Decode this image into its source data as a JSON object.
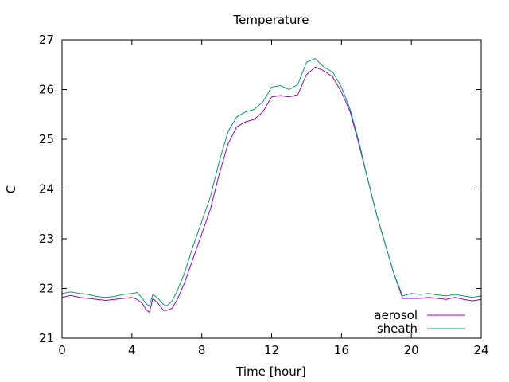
{
  "chart_data": {
    "type": "line",
    "title": "Temperature",
    "xlabel": "Time [hour]",
    "ylabel": "C",
    "xlim": [
      0,
      24
    ],
    "ylim": [
      21,
      27
    ],
    "xticks": [
      0,
      4,
      8,
      12,
      16,
      20,
      24
    ],
    "yticks": [
      21,
      22,
      23,
      24,
      25,
      26,
      27
    ],
    "grid": false,
    "legend_position": "bottom-right",
    "series": [
      {
        "name": "aerosol",
        "color": "#9400d3",
        "x": [
          0,
          0.5,
          1,
          1.5,
          2,
          2.5,
          3,
          3.5,
          4,
          4.3,
          4.6,
          4.8,
          5.0,
          5.2,
          5.5,
          5.8,
          6.0,
          6.3,
          6.6,
          7.0,
          7.5,
          8.0,
          8.5,
          9.0,
          9.5,
          10.0,
          10.5,
          11.0,
          11.5,
          12.0,
          12.5,
          13.0,
          13.5,
          14.0,
          14.5,
          15.0,
          15.5,
          16.0,
          16.5,
          17.0,
          17.5,
          18.0,
          18.5,
          19.0,
          19.5,
          20.0,
          20.5,
          21.0,
          21.5,
          22.0,
          22.5,
          23.0,
          23.5,
          24.0
        ],
        "y": [
          21.82,
          21.86,
          21.82,
          21.8,
          21.78,
          21.76,
          21.78,
          21.8,
          21.82,
          21.78,
          21.7,
          21.58,
          21.52,
          21.8,
          21.7,
          21.56,
          21.56,
          21.6,
          21.78,
          22.1,
          22.6,
          23.1,
          23.6,
          24.3,
          24.9,
          25.25,
          25.35,
          25.4,
          25.55,
          25.85,
          25.88,
          25.85,
          25.9,
          26.3,
          26.45,
          26.38,
          26.25,
          25.95,
          25.55,
          24.9,
          24.2,
          23.5,
          22.9,
          22.3,
          21.8,
          21.8,
          21.8,
          21.82,
          21.8,
          21.78,
          21.82,
          21.78,
          21.75,
          21.78
        ]
      },
      {
        "name": "sheath",
        "color": "#009e73",
        "x": [
          0,
          0.5,
          1,
          1.5,
          2,
          2.5,
          3,
          3.5,
          4,
          4.3,
          4.6,
          4.8,
          5.0,
          5.2,
          5.5,
          5.8,
          6.0,
          6.3,
          6.6,
          7.0,
          7.5,
          8.0,
          8.5,
          9.0,
          9.5,
          10.0,
          10.5,
          11.0,
          11.5,
          12.0,
          12.5,
          13.0,
          13.5,
          14.0,
          14.5,
          15.0,
          15.5,
          16.0,
          16.5,
          17.0,
          17.5,
          18.0,
          18.5,
          19.0,
          19.5,
          20.0,
          20.5,
          21.0,
          21.5,
          22.0,
          22.5,
          23.0,
          23.5,
          24.0
        ],
        "y": [
          21.9,
          21.93,
          21.9,
          21.88,
          21.84,
          21.82,
          21.84,
          21.88,
          21.9,
          21.92,
          21.8,
          21.7,
          21.65,
          21.88,
          21.8,
          21.68,
          21.65,
          21.75,
          21.95,
          22.3,
          22.85,
          23.35,
          23.85,
          24.55,
          25.15,
          25.45,
          25.55,
          25.6,
          25.75,
          26.05,
          26.08,
          26.0,
          26.1,
          26.55,
          26.62,
          26.45,
          26.35,
          26.05,
          25.6,
          24.95,
          24.2,
          23.5,
          22.9,
          22.3,
          21.85,
          21.9,
          21.88,
          21.9,
          21.87,
          21.85,
          21.88,
          21.85,
          21.82,
          21.85
        ]
      }
    ]
  }
}
